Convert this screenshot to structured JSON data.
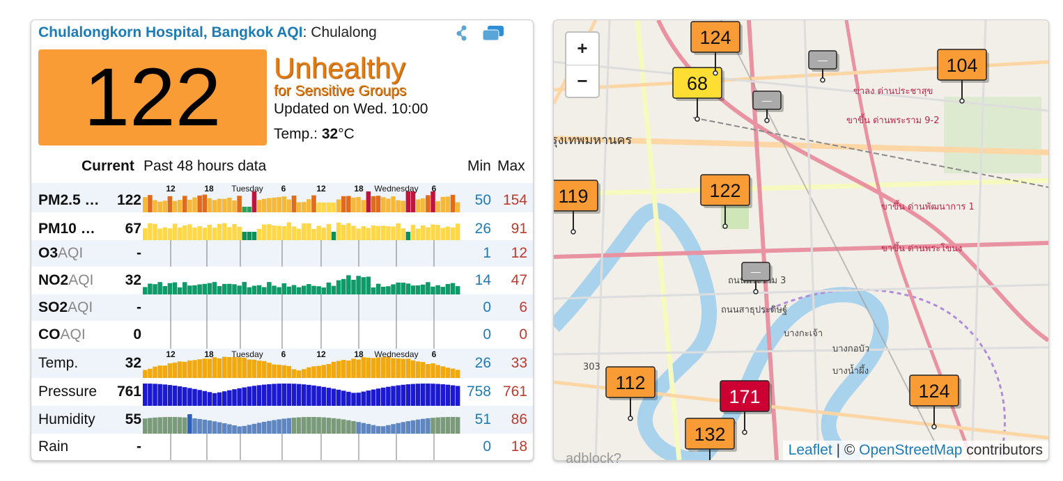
{
  "header": {
    "title": "Chulalongkorn Hospital, Bangkok AQI",
    "colon": ":",
    "subtitle": "Chulalong"
  },
  "aqi": {
    "value": "122",
    "level_line1": "Unhealthy",
    "level_line2": "for Sensitive Groups",
    "updated": "Updated on Wed. 10:00",
    "temp_label": "Temp.:",
    "temp_value": "32",
    "temp_unit": "°C",
    "color": "#f99c35"
  },
  "table": {
    "col_current": "Current",
    "col_past": "Past 48 hours data",
    "col_min": "Min",
    "col_max": "Max",
    "time_ticks": [
      "12",
      "18",
      "Tuesday",
      "6",
      "12",
      "18",
      "Wednesday",
      "6"
    ],
    "rows": [
      {
        "label": "PM2.5 …",
        "unit": "",
        "current": "122",
        "min": "50",
        "max": "154"
      },
      {
        "label": "PM10 …",
        "unit": "",
        "current": "67",
        "min": "26",
        "max": "91"
      },
      {
        "label": "O3",
        "unit": "AQI",
        "current": "-",
        "min": "1",
        "max": "12"
      },
      {
        "label": "NO2",
        "unit": "AQI",
        "current": "32",
        "min": "14",
        "max": "47"
      },
      {
        "label": "SO2",
        "unit": "AQI",
        "current": "-",
        "min": "0",
        "max": "6"
      },
      {
        "label": "CO",
        "unit": "AQI",
        "current": "0",
        "min": "0",
        "max": "0"
      },
      {
        "label": "Temp.",
        "unit": "",
        "current": "32",
        "min": "26",
        "max": "33"
      },
      {
        "label": "Pressure",
        "unit": "",
        "current": "761",
        "min": "758",
        "max": "761"
      },
      {
        "label": "Humidity",
        "unit": "",
        "current": "55",
        "min": "51",
        "max": "86"
      },
      {
        "label": "Rain",
        "unit": "",
        "current": "-",
        "min": "0",
        "max": "18"
      }
    ]
  },
  "map": {
    "zoom_in": "+",
    "zoom_out": "−",
    "attribution": {
      "leaflet": "Leaflet",
      "sep": " | © ",
      "osm": "OpenStreetMap",
      "rest": " contributors"
    },
    "markers": [
      {
        "label": "68",
        "color": "#ffde33"
      },
      {
        "label": "104",
        "color": "#f99c35"
      },
      {
        "label": "119",
        "color": "#f99c35"
      },
      {
        "label": "122",
        "color": "#f99c35"
      },
      {
        "label": "112",
        "color": "#f99c35"
      },
      {
        "label": "171",
        "color": "#cc0033"
      },
      {
        "label": "132",
        "color": "#f99c35"
      },
      {
        "label": "124",
        "color": "#f99c35"
      },
      {
        "label": "124",
        "color": "#f99c35"
      },
      {
        "label": "—",
        "color": "#aaaaaa"
      },
      {
        "label": "—",
        "color": "#aaaaaa"
      },
      {
        "label": "—",
        "color": "#aaaaaa"
      }
    ],
    "place_labels": [
      "รุงเทพมหานคร",
      "ขาลง ด่านประชาสุข",
      "ขาขึ้น ด่านพระราม 9-2",
      "ขาขึ้น ด่านพัฒนาการ 1",
      "ขาขึ้น ด่านพระโขนง",
      "บางกะเจ้า",
      "บางกอบัว",
      "บางน้ำผึ้ง",
      "ถนนพระราม 3",
      "ถนนสาธุประดิษฐ์",
      "303"
    ]
  },
  "below_text": "adblock?"
}
